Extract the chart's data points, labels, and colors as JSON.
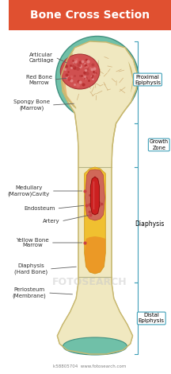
{
  "title": "Bone Cross Section",
  "title_bg": "#e05030",
  "title_color": "#ffffff",
  "bg_color": "#ffffff",
  "bone_color": "#f0e8c0",
  "bone_outline": "#c8b870",
  "cartilage_color": "#70c0a8",
  "cartilage_outline": "#409080",
  "spongy_color": "#e8b878",
  "red_marrow_color": "#cc4040",
  "yellow_marrow_color": "#f0c030",
  "yellow_marrow_bottom": "#e88020",
  "artery_color": "#cc2020",
  "endosteum_fill": "#d06858",
  "bracket_color": "#40a0b8",
  "label_color": "#404040",
  "dot_color": "#cc4040",
  "watermark": "FOTOSEARCH",
  "watermark2": "k58805704  www.fotosearch.com"
}
